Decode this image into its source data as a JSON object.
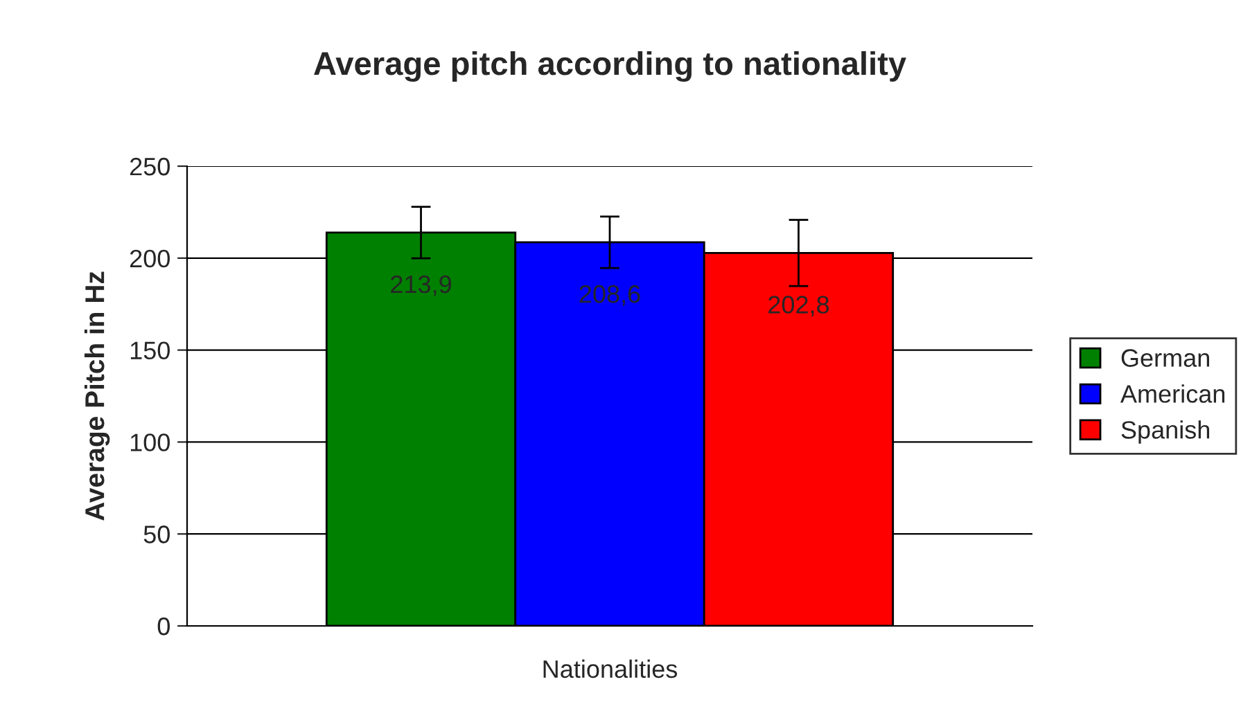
{
  "chart_data": {
    "type": "bar",
    "title": "Average pitch according to nationality",
    "xlabel": "Nationalities",
    "ylabel": "Average Pitch in Hz",
    "categories": [
      null
    ],
    "series": [
      {
        "name": "German",
        "color": "#008000",
        "values": [
          213.9
        ],
        "errors": [
          14
        ],
        "value_labels": [
          "213,9"
        ]
      },
      {
        "name": "American",
        "color": "#0000ff",
        "values": [
          208.6
        ],
        "errors": [
          14
        ],
        "value_labels": [
          "208,6"
        ]
      },
      {
        "name": "Spanish",
        "color": "#ff0000",
        "values": [
          202.8
        ],
        "errors": [
          18
        ],
        "value_labels": [
          "202,8"
        ]
      }
    ],
    "ylim": [
      0,
      250
    ],
    "yticks": [
      0,
      50,
      100,
      150,
      200,
      250
    ],
    "grid": "y",
    "legend": "right"
  }
}
